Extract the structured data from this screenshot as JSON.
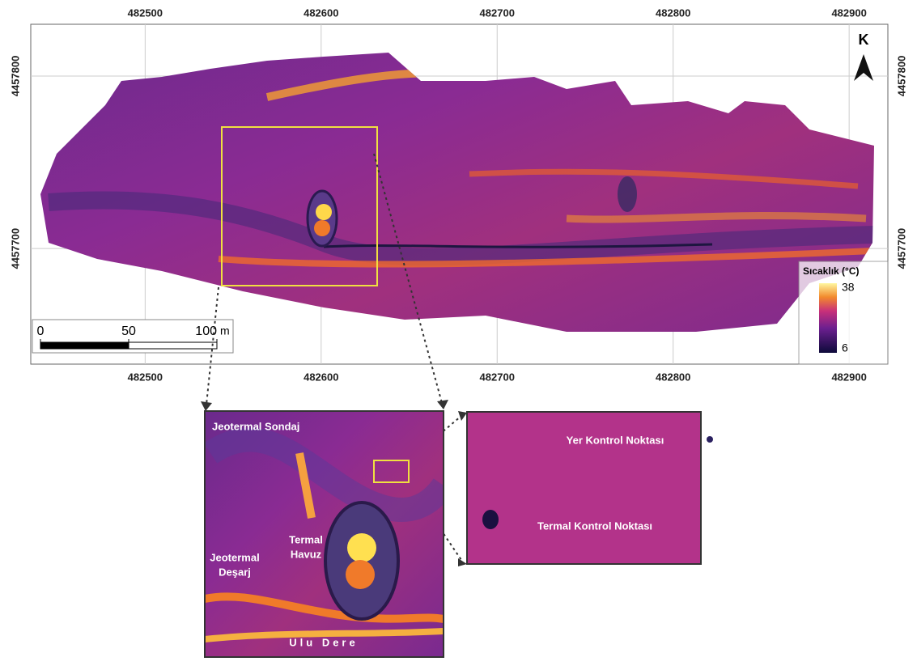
{
  "map": {
    "xlim": [
      482435,
      482922
    ],
    "ylim": [
      4457633,
      4457830
    ],
    "xticks": [
      482500,
      482600,
      482700,
      482800,
      482900
    ],
    "yticks": [
      4457800,
      4457700
    ],
    "north": "K",
    "grid": true
  },
  "scale_bar": {
    "ticks": [
      0,
      50,
      100
    ],
    "unit": "m"
  },
  "legend": {
    "title": "Sıcaklık (°C)",
    "max": 38,
    "min": 6
  },
  "inset_left": {
    "labels": [
      [
        "Jeotermal Sondaj"
      ],
      [
        "Termal",
        "Havuz"
      ],
      [
        "Jeotermal",
        "Deşarj"
      ],
      [
        "Ulu Dere"
      ]
    ]
  },
  "inset_right": {
    "labels": [
      "Yer Kontrol Noktası",
      "Termal Kontrol Noktası"
    ]
  }
}
